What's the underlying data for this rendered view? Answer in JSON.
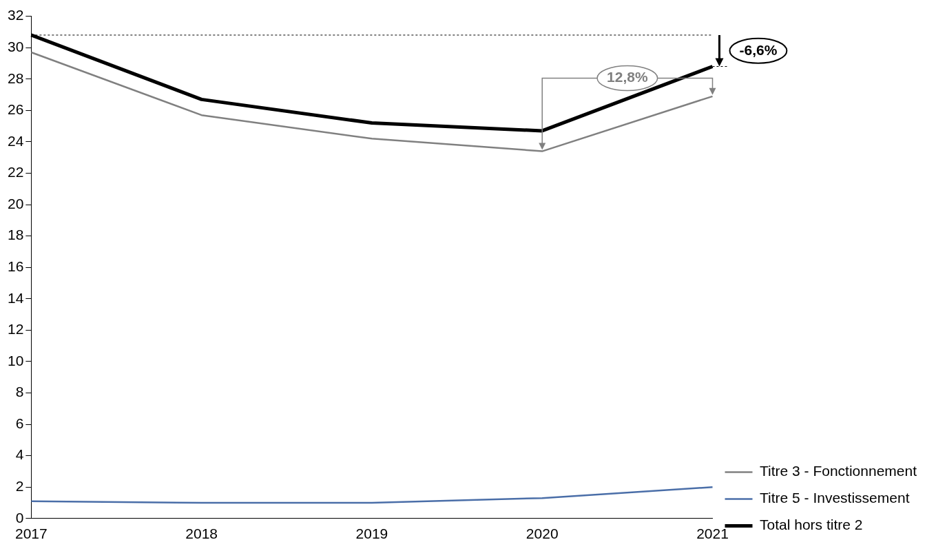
{
  "chart_data": {
    "type": "line",
    "categories": [
      "2017",
      "2018",
      "2019",
      "2020",
      "2021"
    ],
    "series": [
      {
        "name": "Titre 3 - Fonctionnement",
        "color": "#808080",
        "values": [
          29.7,
          25.7,
          24.2,
          23.4,
          26.9
        ]
      },
      {
        "name": "Titre 5 - Investissement",
        "color": "#4a6ea8",
        "values": [
          1.1,
          1.0,
          1.0,
          1.3,
          2.0
        ]
      },
      {
        "name": "Total hors titre 2",
        "color": "#000000",
        "values": [
          30.8,
          26.7,
          25.2,
          24.7,
          28.8
        ]
      }
    ],
    "ylim": [
      0,
      32
    ],
    "yticks": [
      0,
      2,
      4,
      6,
      8,
      10,
      12,
      14,
      16,
      18,
      20,
      22,
      24,
      26,
      28,
      30,
      32
    ],
    "grid": false,
    "legend": "bottom right",
    "marker": "none",
    "ref_lines": [
      {
        "axis": "y",
        "value": 30.8,
        "color": "#000000",
        "line_style": "dashed"
      }
    ],
    "annotations": [
      "-6,6%",
      "12,8%"
    ]
  }
}
